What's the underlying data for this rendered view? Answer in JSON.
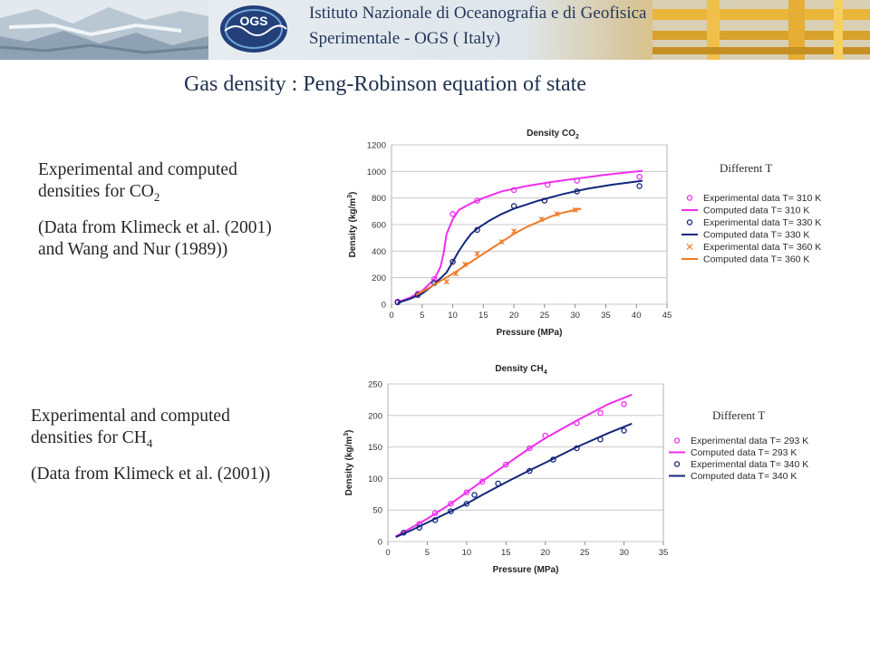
{
  "header": {
    "institute_line1": "Istituto Nazionale di Oceanografia e di Geofisica",
    "institute_line2": "Sperimentale - OGS ( Italy)",
    "logo_text": "OGS"
  },
  "page_title": "Gas density : Peng-Robinson equation of state",
  "panel1": {
    "desc_line1": "Experimental and computed densities for CO",
    "desc_sub": "2",
    "desc_ref": "(Data from Klimeck et al. (2001) and Wang and Nur (1989))",
    "note": "Different T"
  },
  "panel2": {
    "desc_line1": "Experimental and computed densities for CH",
    "desc_sub": "4",
    "desc_ref": "(Data  from Klimeck et al. (2001))",
    "note": "Different T"
  },
  "colors": {
    "magenta": "#ee2eee",
    "navy": "#13267a",
    "orange": "#ee7a28",
    "title": "#1f3050"
  },
  "chart_data": [
    {
      "type": "line",
      "title_main": "Density CO",
      "title_sub": "2",
      "xlabel": "Pressure (MPa)",
      "ylabel_main": "Density (kg/m",
      "ylabel_sup": "3",
      "ylabel_end": ")",
      "xlim": [
        0,
        45
      ],
      "ylim": [
        0,
        1200
      ],
      "xticks": [
        0,
        5,
        10,
        15,
        20,
        25,
        30,
        35,
        40,
        45
      ],
      "yticks": [
        0,
        200,
        400,
        600,
        800,
        1000,
        1200
      ],
      "series": [
        {
          "name": "Experimental data T= 310 K",
          "kind": "circles",
          "color": "#ee2eee",
          "x": [
            1,
            4.3,
            7,
            10,
            14,
            20,
            25.5,
            30.3,
            40.5
          ],
          "y": [
            20,
            80,
            190,
            680,
            780,
            860,
            900,
            930,
            960
          ]
        },
        {
          "name": "Computed data T= 310 K",
          "kind": "line",
          "color": "#ee2eee",
          "x": [
            1,
            3,
            5,
            7,
            8,
            8.5,
            9,
            10,
            11,
            13,
            15,
            18,
            22,
            26,
            30,
            35,
            41
          ],
          "y": [
            15,
            50,
            100,
            190,
            280,
            380,
            530,
            640,
            710,
            760,
            800,
            850,
            890,
            920,
            945,
            975,
            1005
          ]
        },
        {
          "name": "Experimental data T= 330 K",
          "kind": "circles",
          "color": "#13267a",
          "x": [
            1,
            4.3,
            7,
            10,
            14,
            20,
            25,
            30.3,
            40.5
          ],
          "y": [
            15,
            70,
            160,
            320,
            560,
            740,
            780,
            850,
            890
          ]
        },
        {
          "name": "Computed data T= 330 K",
          "kind": "line",
          "color": "#13267a",
          "x": [
            1,
            3,
            5,
            7,
            9,
            10,
            11,
            12,
            13,
            14,
            16,
            18,
            20,
            24,
            28,
            32,
            36,
            41
          ],
          "y": [
            10,
            40,
            80,
            150,
            240,
            320,
            400,
            470,
            530,
            570,
            630,
            680,
            720,
            780,
            830,
            870,
            900,
            930
          ]
        },
        {
          "name": "Experimental data T= 360 K",
          "kind": "crosses",
          "color": "#ee7a28",
          "x": [
            9,
            10.5,
            12,
            14,
            18,
            20,
            24.5,
            27,
            30
          ],
          "y": [
            170,
            230,
            300,
            380,
            470,
            550,
            640,
            680,
            710
          ]
        },
        {
          "name": "Computed data T= 360 K",
          "kind": "line",
          "color": "#ee7a28",
          "x": [
            4,
            6,
            8,
            10,
            12,
            14,
            16,
            18,
            20,
            22,
            24,
            26,
            28,
            31
          ],
          "y": [
            70,
            120,
            175,
            230,
            290,
            350,
            410,
            470,
            530,
            580,
            620,
            660,
            690,
            720
          ]
        }
      ],
      "legend_position": "right"
    },
    {
      "type": "line",
      "title_main": "Density CH",
      "title_sub": "4",
      "xlabel": "Pressure (MPa)",
      "ylabel_main": "Density (kg/m",
      "ylabel_sup": "3",
      "ylabel_end": ")",
      "xlim": [
        0,
        35
      ],
      "ylim": [
        0,
        250
      ],
      "xticks": [
        0,
        5,
        10,
        15,
        20,
        25,
        30,
        35
      ],
      "yticks": [
        0,
        50,
        100,
        150,
        200,
        250
      ],
      "series": [
        {
          "name": "Experimental data T= 293 K",
          "kind": "circles",
          "color": "#ee2eee",
          "x": [
            4,
            6,
            8,
            10,
            12,
            15,
            18,
            20,
            24,
            27,
            30
          ],
          "y": [
            28,
            45,
            60,
            78,
            95,
            122,
            148,
            168,
            188,
            204,
            218
          ]
        },
        {
          "name": "Computed data T= 293 K",
          "kind": "line",
          "color": "#ee2eee",
          "x": [
            1,
            3,
            5,
            8,
            10,
            12,
            15,
            18,
            20,
            24,
            28,
            31
          ],
          "y": [
            8,
            22,
            36,
            60,
            78,
            96,
            122,
            148,
            164,
            192,
            218,
            233
          ]
        },
        {
          "name": "Experimental data T= 340 K",
          "kind": "circles",
          "color": "#13267a",
          "x": [
            2,
            4,
            6,
            8,
            10,
            11,
            14,
            18,
            21,
            24,
            27,
            30
          ],
          "y": [
            14,
            22,
            34,
            48,
            60,
            74,
            92,
            112,
            130,
            148,
            162,
            176
          ]
        },
        {
          "name": "Computed data T= 340 K",
          "kind": "line",
          "color": "#13267a",
          "x": [
            1,
            3,
            5,
            8,
            10,
            12,
            15,
            18,
            20,
            24,
            28,
            31
          ],
          "y": [
            7,
            18,
            30,
            48,
            60,
            74,
            94,
            113,
            125,
            150,
            172,
            187
          ]
        }
      ],
      "legend_position": "right"
    }
  ]
}
